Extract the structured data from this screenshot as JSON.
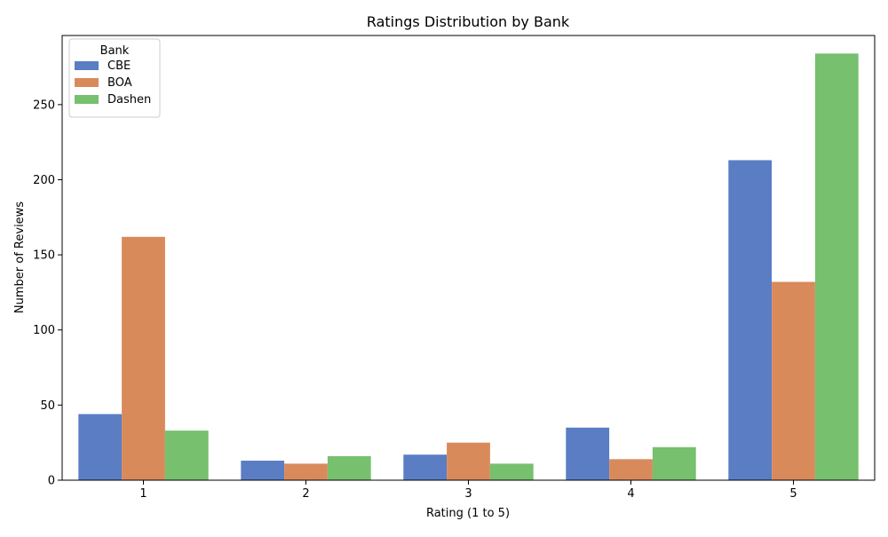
{
  "chart_data": {
    "type": "bar",
    "title": "Ratings Distribution by Bank",
    "xlabel": "Rating (1 to 5)",
    "ylabel": "Number of Reviews",
    "categories": [
      "1",
      "2",
      "3",
      "4",
      "5"
    ],
    "ylim": [
      0,
      296
    ],
    "yticks": [
      0,
      50,
      100,
      150,
      200,
      250
    ],
    "grid": false,
    "legend": {
      "title": "Bank",
      "placement": "top-left"
    },
    "series": [
      {
        "name": "CBE",
        "color": "#5A7DC4",
        "values": [
          44,
          13,
          17,
          35,
          213
        ]
      },
      {
        "name": "BOA",
        "color": "#D98A5B",
        "values": [
          162,
          11,
          25,
          14,
          132
        ]
      },
      {
        "name": "Dashen",
        "color": "#76C06E",
        "values": [
          33,
          16,
          11,
          22,
          284
        ]
      }
    ]
  }
}
